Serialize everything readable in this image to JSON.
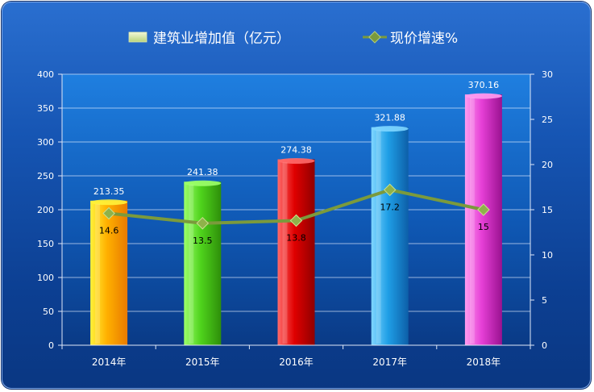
{
  "chart_data": {
    "type": "bar+line",
    "title": "",
    "categories": [
      "2014年",
      "2015年",
      "2016年",
      "2017年",
      "2018年"
    ],
    "series": [
      {
        "name": "建筑业增加值（亿元）",
        "type": "bar",
        "axis": "left",
        "values": [
          213.35,
          241.38,
          274.38,
          321.88,
          370.16
        ],
        "labels": [
          "213.35",
          "241.38",
          "274.38",
          "321.88",
          "370.16"
        ],
        "colors": [
          [
            "#fff23a",
            "#ffb000",
            "#e87a00"
          ],
          [
            "#9cff6a",
            "#4fd31c",
            "#2e8f0a"
          ],
          [
            "#ff6a6a",
            "#e00000",
            "#8f0000"
          ],
          [
            "#7fd6ff",
            "#1f9fe6",
            "#0d5fa8"
          ],
          [
            "#ff9cf0",
            "#e63fd6",
            "#9a1290"
          ]
        ]
      },
      {
        "name": "现价增速%",
        "type": "line",
        "axis": "right",
        "values": [
          14.6,
          13.5,
          13.8,
          17.2,
          15
        ],
        "labels": [
          "14.6",
          "13.5",
          "13.8",
          "17.2",
          "15"
        ],
        "color": "#7b9a3c"
      }
    ],
    "y_left": {
      "min": 0,
      "max": 400,
      "step": 50,
      "ticks": [
        "0",
        "50",
        "100",
        "150",
        "200",
        "250",
        "300",
        "350",
        "400"
      ]
    },
    "y_right": {
      "min": 0,
      "max": 30,
      "step": 5,
      "ticks": [
        "0",
        "5",
        "10",
        "15",
        "20",
        "25",
        "30"
      ]
    },
    "grid": true,
    "legend": "top-center"
  }
}
